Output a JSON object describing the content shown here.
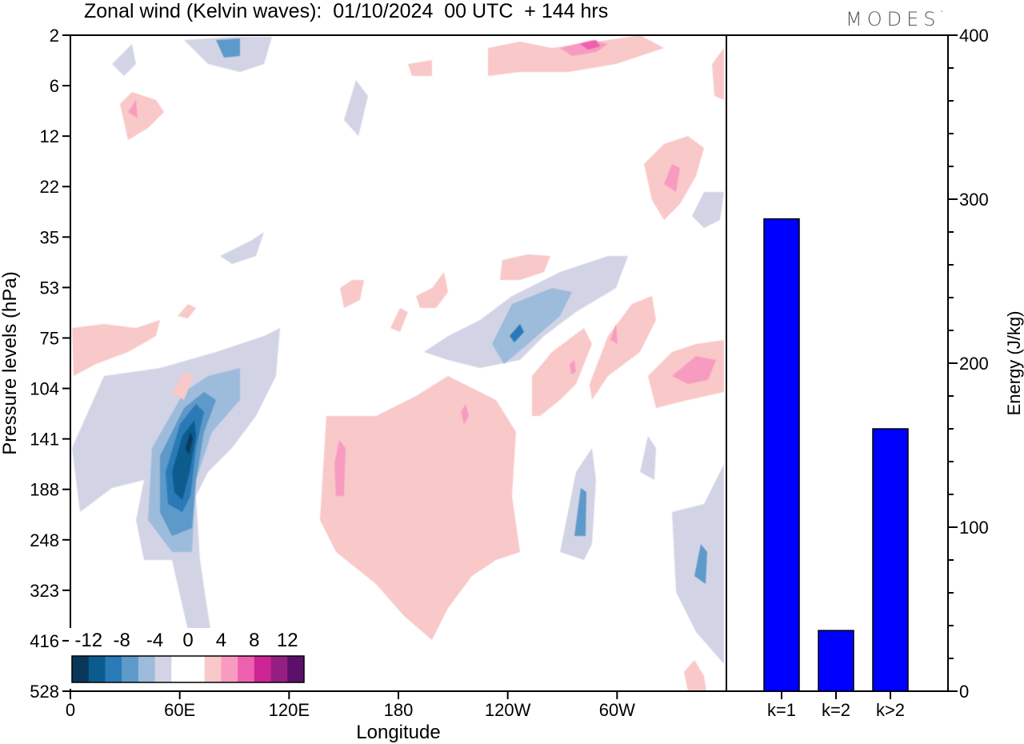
{
  "header": {
    "title": "Zonal wind (Kelvin waves):  01/10/2024  00 UTC  + 144 hrs",
    "brand": "MODES",
    "brand_mark": "°"
  },
  "colors": {
    "neg": [
      "#08375a",
      "#0a5c8e",
      "#2b7ab8",
      "#5d99c9",
      "#9dbbdb",
      "#d2d4e6"
    ],
    "zero": "#ffffff",
    "pos": [
      "#f9c8c8",
      "#f79cc0",
      "#ee5fb0",
      "#cc2494",
      "#951e81",
      "#5b0f6b"
    ],
    "bar": "#0000ff"
  },
  "chart_data": [
    {
      "type": "heatmap",
      "xlabel": "Longitude",
      "ylabel": "Pressure levels (hPa)",
      "x_ticks": [
        "0",
        "60E",
        "120E",
        "180",
        "120W",
        "60W"
      ],
      "y_ticks": [
        "2",
        "6",
        "12",
        "22",
        "35",
        "53",
        "75",
        "104",
        "141",
        "188",
        "248",
        "323",
        "416",
        "528"
      ],
      "colorbar_labels": [
        "-12",
        "-8",
        "-4",
        "0",
        "4",
        "8",
        "12"
      ],
      "contour_levels": [
        -14,
        -12,
        -10,
        -8,
        -6,
        -4,
        -2,
        2,
        4,
        6,
        8,
        10,
        12,
        14
      ],
      "features": [
        {
          "lon": 63,
          "level": "141",
          "peak": -13
        },
        {
          "lon": 60,
          "level": "188",
          "peak": -10
        },
        {
          "lon": 43,
          "level": "141",
          "peak": -5
        },
        {
          "lon": 15,
          "level": "188",
          "peak": -5
        },
        {
          "lon": 132,
          "level": "104",
          "peak": -3
        },
        {
          "lon": 243,
          "level": "75",
          "peak": -7
        },
        {
          "lon": 278,
          "level": "248",
          "peak": -5
        },
        {
          "lon": 347,
          "level": "323",
          "peak": -6
        },
        {
          "lon": 283,
          "level": "6",
          "peak": -3
        },
        {
          "lon": 350,
          "level": "22",
          "peak": -3
        },
        {
          "lon": 86,
          "level": "2",
          "peak": -4
        },
        {
          "lon": 150,
          "level": "188",
          "peak": 4
        },
        {
          "lon": 190,
          "level": "188",
          "peak": 3
        },
        {
          "lon": 210,
          "level": "188",
          "peak": 4
        },
        {
          "lon": 200,
          "level": "323",
          "peak": 2
        },
        {
          "lon": 20,
          "level": "75",
          "peak": 5
        },
        {
          "lon": 30,
          "level": "12",
          "peak": 5
        },
        {
          "lon": 283,
          "level": "2",
          "peak": 9
        },
        {
          "lon": 332,
          "level": "22",
          "peak": 6
        },
        {
          "lon": 332,
          "level": "75",
          "peak": 7
        },
        {
          "lon": 300,
          "level": "104",
          "peak": 5
        },
        {
          "lon": 355,
          "level": "104",
          "peak": 8
        },
        {
          "lon": 195,
          "level": "53",
          "peak": 2
        },
        {
          "lon": 247,
          "level": "35",
          "peak": 2
        }
      ]
    },
    {
      "type": "bar",
      "categories": [
        "k=1",
        "k=2",
        "k>2"
      ],
      "values": [
        288,
        37,
        160
      ],
      "ylabel": "Energy (J/kg)",
      "ylim": [
        0,
        400
      ],
      "y_ticks": [
        "0",
        "100",
        "200",
        "300",
        "400"
      ]
    }
  ]
}
